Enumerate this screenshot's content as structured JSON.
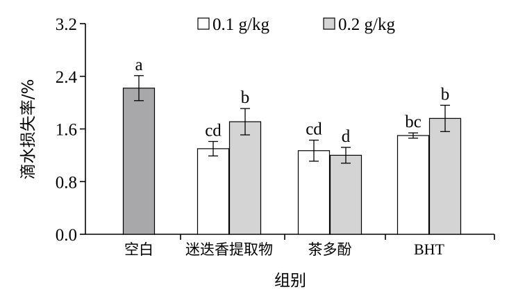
{
  "chart_data": {
    "type": "bar",
    "title": "",
    "xlabel": "组别",
    "ylabel": "滴水损失率/%",
    "ylim": [
      0,
      3.2
    ],
    "yticks": [
      "0.0",
      "0.8",
      "1.6",
      "2.4",
      "3.2"
    ],
    "categories": [
      "空白",
      "迷迭香提取物",
      "茶多酚",
      "BHT"
    ],
    "legend_position": "top",
    "series": [
      {
        "name": "0.1 g/kg",
        "color": "#ffffff",
        "values": [
          null,
          1.3,
          1.27,
          1.5
        ],
        "errors": [
          null,
          0.11,
          0.16,
          0.04
        ],
        "labels": [
          "",
          "cd",
          "cd",
          "bc"
        ]
      },
      {
        "name": "0.2 g/kg",
        "color": "#d4d4d4",
        "values": [
          null,
          1.71,
          1.2,
          1.76
        ],
        "errors": [
          null,
          0.2,
          0.12,
          0.2
        ],
        "labels": [
          "",
          "b",
          "d",
          "b"
        ]
      }
    ],
    "control": {
      "category": "空白",
      "value": 2.22,
      "error": 0.19,
      "label": "a",
      "color": "#a8a8aa"
    }
  }
}
